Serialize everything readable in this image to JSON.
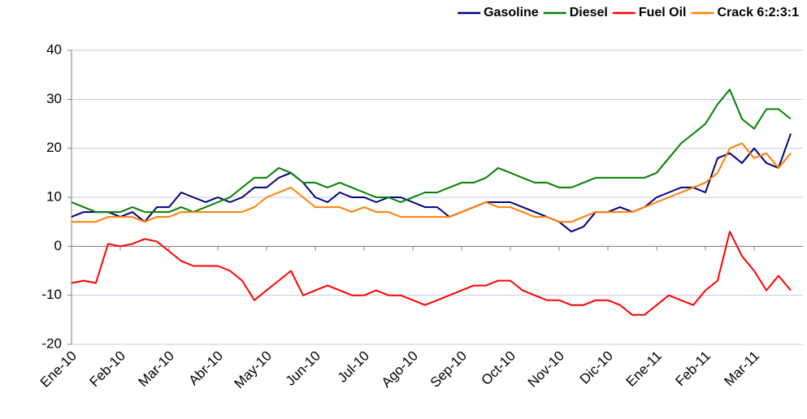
{
  "chart_data": {
    "type": "line",
    "categories": [
      "Ene-10",
      null,
      null,
      null,
      "Feb-10",
      null,
      null,
      null,
      "Mar-10",
      null,
      null,
      null,
      "Abr-10",
      null,
      null,
      null,
      "May-10",
      null,
      null,
      null,
      "Jun-10",
      null,
      null,
      null,
      "Jul-10",
      null,
      null,
      null,
      "Ago-10",
      null,
      null,
      null,
      "Sep-10",
      null,
      null,
      null,
      "Oct-10",
      null,
      null,
      null,
      "Nov-10",
      null,
      null,
      null,
      "Dic-10",
      null,
      null,
      null,
      "Ene-11",
      null,
      null,
      null,
      "Feb-11",
      null,
      null,
      null,
      "Mar-11",
      null,
      null,
      null
    ],
    "series": [
      {
        "name": "Gasoline",
        "color": "#000080",
        "values": [
          6,
          7,
          7,
          7,
          6,
          7,
          5,
          8,
          8,
          11,
          10,
          9,
          10,
          9,
          10,
          12,
          12,
          14,
          15,
          13,
          10,
          9,
          11,
          10,
          10,
          9,
          10,
          10,
          9,
          8,
          8,
          6,
          7,
          8,
          9,
          9,
          9,
          8,
          7,
          6,
          5,
          3,
          4,
          7,
          7,
          8,
          7,
          8,
          10,
          11,
          12,
          12,
          11,
          18,
          19,
          17,
          20,
          17,
          16,
          23
        ]
      },
      {
        "name": "Diesel",
        "color": "#008000",
        "values": [
          9,
          8,
          7,
          7,
          7,
          8,
          7,
          7,
          7,
          8,
          7,
          8,
          9,
          10,
          12,
          14,
          14,
          16,
          15,
          13,
          13,
          12,
          13,
          12,
          11,
          10,
          10,
          9,
          10,
          11,
          11,
          12,
          13,
          13,
          14,
          16,
          15,
          14,
          13,
          13,
          12,
          12,
          13,
          14,
          14,
          14,
          14,
          14,
          15,
          18,
          21,
          23,
          25,
          29,
          32,
          26,
          24,
          28,
          28,
          26
        ]
      },
      {
        "name": "Fuel Oil",
        "color": "#ff0000",
        "values": [
          -7.5,
          -7,
          -7.5,
          0.5,
          0,
          0.5,
          1.5,
          1,
          -1,
          -3,
          -4,
          -4,
          -4,
          -5,
          -7,
          -11,
          -9,
          -7,
          -5,
          -10,
          -9,
          -8,
          -9,
          -10,
          -10,
          -9,
          -10,
          -10,
          -11,
          -12,
          -11,
          -10,
          -9,
          -8,
          -8,
          -7,
          -7,
          -9,
          -10,
          -11,
          -11,
          -12,
          -12,
          -11,
          -11,
          -12,
          -14,
          -14,
          -12,
          -10,
          -11,
          -12,
          -9,
          -7,
          3,
          -2,
          -5,
          -9,
          -6,
          -9
        ]
      },
      {
        "name": "Crack 6:2:3:1",
        "color": "#ff8000",
        "values": [
          5,
          5,
          5,
          6,
          6,
          6,
          5,
          6,
          6,
          7,
          7,
          7,
          7,
          7,
          7,
          8,
          10,
          11,
          12,
          10,
          8,
          8,
          8,
          7,
          8,
          7,
          7,
          6,
          6,
          6,
          6,
          6,
          7,
          8,
          9,
          8,
          8,
          7,
          6,
          6,
          5,
          5,
          6,
          7,
          7,
          7,
          7,
          8,
          9,
          10,
          11,
          12,
          13,
          15,
          20,
          21,
          18,
          19,
          16,
          19
        ]
      }
    ],
    "ylim": [
      -20,
      40
    ],
    "yticks": [
      -20,
      -10,
      0,
      10,
      20,
      30,
      40
    ],
    "grid": true,
    "legend": "top-right"
  }
}
